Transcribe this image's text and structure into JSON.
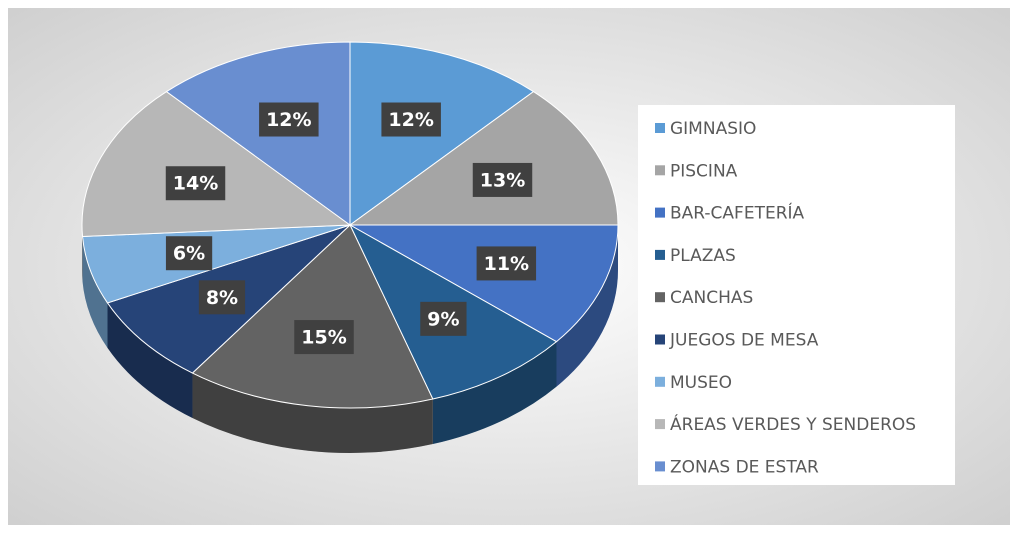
{
  "chart_data": {
    "type": "pie3d",
    "categories": [
      "GIMNASIO",
      "PISCINA",
      "BAR-CAFETERÍA",
      "PLAZAS",
      "CANCHAS",
      "JUEGOS DE MESA",
      "MUSEO",
      "ÁREAS VERDES Y SENDEROS",
      "ZONAS DE ESTAR"
    ],
    "values": [
      12,
      13,
      11,
      9,
      15,
      8,
      6,
      14,
      12
    ],
    "value_labels": [
      "12%",
      "13%",
      "11%",
      "9%",
      "15%",
      "8%",
      "6%",
      "14%",
      "12%"
    ],
    "colors": [
      "#5b9bd5",
      "#a5a5a5",
      "#4472c4",
      "#255e91",
      "#636363",
      "#264478",
      "#7cafdd",
      "#b7b7b7",
      "#698ed0"
    ],
    "legend": "right"
  }
}
